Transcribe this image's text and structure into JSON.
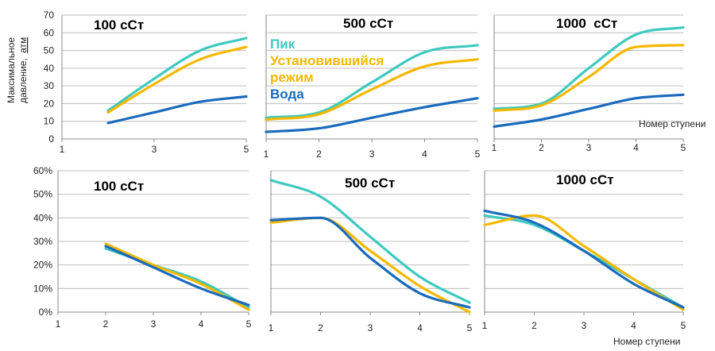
{
  "y_axis_label_line1": "Максимальное",
  "y_axis_label_line2": "давление,",
  "y_axis_label_unit": "атм",
  "x_axis_label": "Номер ступени",
  "legend": {
    "peak": "Пик",
    "steady_line1": "Установившийся",
    "steady_line2": "режим",
    "water": "Вода"
  },
  "colors": {
    "peak": "#3ec9c0",
    "steady": "#f5b800",
    "water": "#1a6bbd"
  },
  "chart_data": [
    {
      "type": "line",
      "title": "100 сСт",
      "xlim": [
        1,
        5
      ],
      "xticks": [
        1,
        3,
        5
      ],
      "ylim": [
        0,
        70
      ],
      "yticks": [
        0,
        10,
        20,
        30,
        40,
        50,
        60,
        70
      ],
      "y_format": "number",
      "series": [
        {
          "name": "Пик",
          "x": [
            2,
            3,
            4,
            5
          ],
          "y": [
            16,
            34,
            50,
            57
          ]
        },
        {
          "name": "Установившийся режим",
          "x": [
            2,
            3,
            4,
            5
          ],
          "y": [
            15,
            31,
            45,
            52
          ]
        },
        {
          "name": "Вода",
          "x": [
            2,
            3,
            4,
            5
          ],
          "y": [
            9,
            15,
            21,
            24
          ]
        }
      ]
    },
    {
      "type": "line",
      "title": "500 сСт",
      "xlim": [
        1,
        5
      ],
      "xticks": [
        1,
        2,
        3,
        4,
        5
      ],
      "ylim": [
        0,
        70
      ],
      "yticks": [
        0,
        10,
        20,
        30,
        40,
        50,
        60,
        70
      ],
      "y_format": "number",
      "series": [
        {
          "name": "Пик",
          "x": [
            1,
            2,
            3,
            4,
            5
          ],
          "y": [
            12,
            15,
            32,
            49,
            53
          ]
        },
        {
          "name": "Установившийся режим",
          "x": [
            1,
            2,
            3,
            4,
            5
          ],
          "y": [
            11,
            14,
            28,
            41,
            45
          ]
        },
        {
          "name": "Вода",
          "x": [
            1,
            2,
            3,
            4,
            5
          ],
          "y": [
            4,
            6,
            12,
            18,
            23
          ]
        }
      ]
    },
    {
      "type": "line",
      "title": "1000  сСт",
      "xlim": [
        1,
        5
      ],
      "xticks": [
        1,
        2,
        3,
        4,
        5
      ],
      "ylim": [
        0,
        70
      ],
      "yticks": [
        0,
        10,
        20,
        30,
        40,
        50,
        60,
        70
      ],
      "y_format": "number",
      "series": [
        {
          "name": "Пик",
          "x": [
            1,
            2,
            3,
            4,
            5
          ],
          "y": [
            17,
            20,
            40,
            59,
            63
          ]
        },
        {
          "name": "Установившийся режим",
          "x": [
            1,
            2,
            3,
            4,
            5
          ],
          "y": [
            16,
            19,
            35,
            52,
            53
          ]
        },
        {
          "name": "Вода",
          "x": [
            1,
            2,
            3,
            4,
            5
          ],
          "y": [
            7,
            11,
            17,
            23,
            25
          ]
        }
      ]
    },
    {
      "type": "line",
      "title": "100 сСт",
      "xlim": [
        1,
        5
      ],
      "xticks": [
        1,
        2,
        3,
        4,
        5
      ],
      "ylim": [
        0,
        0.6
      ],
      "yticks": [
        0,
        0.1,
        0.2,
        0.3,
        0.4,
        0.5,
        0.6
      ],
      "y_format": "percent",
      "series": [
        {
          "name": "Пик",
          "x": [
            2,
            3,
            4,
            5
          ],
          "y": [
            0.27,
            0.2,
            0.13,
            0.02
          ]
        },
        {
          "name": "Установившийся режим",
          "x": [
            2,
            3,
            4,
            5
          ],
          "y": [
            0.29,
            0.2,
            0.12,
            0.01
          ]
        },
        {
          "name": "Вода",
          "x": [
            2,
            3,
            4,
            5
          ],
          "y": [
            0.28,
            0.19,
            0.1,
            0.03
          ]
        }
      ]
    },
    {
      "type": "line",
      "title": "500 сСт",
      "xlim": [
        1,
        5
      ],
      "xticks": [
        1,
        2,
        3,
        4,
        5
      ],
      "ylim": [
        0,
        0.6
      ],
      "yticks": [
        0,
        0.1,
        0.2,
        0.3,
        0.4,
        0.5,
        0.6
      ],
      "y_format": "percent",
      "series": [
        {
          "name": "Пик",
          "x": [
            1,
            2,
            3,
            4,
            5
          ],
          "y": [
            0.56,
            0.49,
            0.32,
            0.15,
            0.04
          ]
        },
        {
          "name": "Установившийся режим",
          "x": [
            1,
            2,
            3,
            4,
            5
          ],
          "y": [
            0.38,
            0.4,
            0.26,
            0.11,
            0.0
          ]
        },
        {
          "name": "Вода",
          "x": [
            1,
            2,
            3,
            4,
            5
          ],
          "y": [
            0.39,
            0.4,
            0.23,
            0.08,
            0.02
          ]
        }
      ]
    },
    {
      "type": "line",
      "title": "1000 сСт",
      "xlim": [
        1,
        5
      ],
      "xticks": [
        1,
        2,
        3,
        4,
        5
      ],
      "ylim": [
        0,
        0.6
      ],
      "yticks": [
        0,
        0.1,
        0.2,
        0.3,
        0.4,
        0.5,
        0.6
      ],
      "y_format": "percent",
      "series": [
        {
          "name": "Пик",
          "x": [
            1,
            2,
            3,
            4,
            5
          ],
          "y": [
            0.41,
            0.37,
            0.26,
            0.14,
            0.02
          ]
        },
        {
          "name": "Установившийся режим",
          "x": [
            1,
            2,
            3,
            4,
            5
          ],
          "y": [
            0.37,
            0.41,
            0.28,
            0.14,
            0.01
          ]
        },
        {
          "name": "Вода",
          "x": [
            1,
            2,
            3,
            4,
            5
          ],
          "y": [
            0.43,
            0.38,
            0.26,
            0.12,
            0.02
          ]
        }
      ]
    }
  ]
}
